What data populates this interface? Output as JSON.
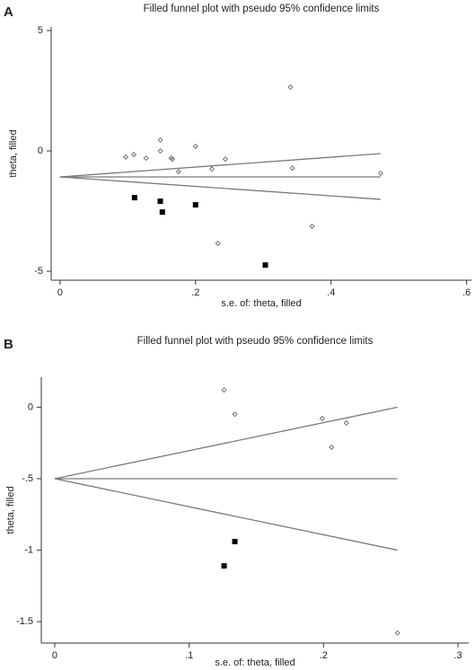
{
  "chart_data": [
    {
      "type": "scatter",
      "panel": "A",
      "title": "Filled funnel plot with pseudo 95% confidence limits",
      "x_label": "s.e. of: theta, filled",
      "y_label": "theta, filled",
      "xlim": [
        -0.013,
        0.607
      ],
      "ylim": [
        -5.37,
        5.15
      ],
      "xticks": [
        0,
        {
          "value": 0.2,
          "label": ".2"
        },
        {
          "value": 0.4,
          "label": ".4"
        },
        {
          "value": 0.6,
          "label": ".6"
        }
      ],
      "yticks": [
        5,
        0,
        -5
      ],
      "observed": {
        "color": "#666666",
        "x": [
          0.097,
          0.109,
          0.127,
          0.148,
          0.148,
          0.164,
          0.166,
          0.175,
          0.2,
          0.224,
          0.244,
          0.233,
          0.34,
          0.343,
          0.372,
          0.473
        ],
        "y": [
          -0.26,
          -0.15,
          -0.3,
          0.45,
          0.0,
          -0.3,
          -0.34,
          -0.86,
          0.19,
          -0.75,
          -0.34,
          -3.84,
          2.65,
          -0.71,
          -3.13,
          -0.93
        ]
      },
      "filled": {
        "color": "#000000",
        "x": [
          0.11,
          0.148,
          0.151,
          0.2,
          0.303
        ],
        "y": [
          -1.94,
          -2.09,
          -2.54,
          -2.24,
          -4.74
        ]
      },
      "ci_lines": [
        {
          "x": [
            0,
            0.473
          ],
          "y": [
            -1.08,
            -1.08
          ]
        },
        {
          "x": [
            0,
            0.473
          ],
          "y": [
            -1.08,
            -0.11
          ]
        },
        {
          "x": [
            0,
            0.473
          ],
          "y": [
            -1.08,
            -2.01
          ]
        }
      ]
    },
    {
      "type": "scatter",
      "panel": "B",
      "title": "Filled funnel plot with pseudo 95% confidence limits",
      "x_label": "s.e. of: theta, filled",
      "y_label": "theta, filled",
      "xlim": [
        -0.01,
        0.308
      ],
      "ylim": [
        -1.65,
        0.21
      ],
      "xticks": [
        0,
        {
          "value": 0.1,
          "label": ".1"
        },
        {
          "value": 0.2,
          "label": ".2"
        },
        {
          "value": 0.3,
          "label": ".3"
        }
      ],
      "yticks": [
        0,
        {
          "value": -0.5,
          "label": "-.5"
        },
        -1,
        -1.5
      ],
      "observed": {
        "color": "#666666",
        "x": [
          0.126,
          0.134,
          0.199,
          0.206,
          0.217,
          0.255
        ],
        "y": [
          0.12,
          -0.05,
          -0.08,
          -0.28,
          -0.11,
          -1.58
        ]
      },
      "filled": {
        "color": "#000000",
        "x": [
          0.134,
          0.126
        ],
        "y": [
          -0.94,
          -1.11
        ]
      },
      "ci_lines": [
        {
          "x": [
            0,
            0.255
          ],
          "y": [
            -0.5,
            -0.5
          ]
        },
        {
          "x": [
            0,
            0.255
          ],
          "y": [
            -0.5,
            0.0
          ]
        },
        {
          "x": [
            0,
            0.255
          ],
          "y": [
            -0.5,
            -1.0
          ]
        }
      ]
    }
  ]
}
